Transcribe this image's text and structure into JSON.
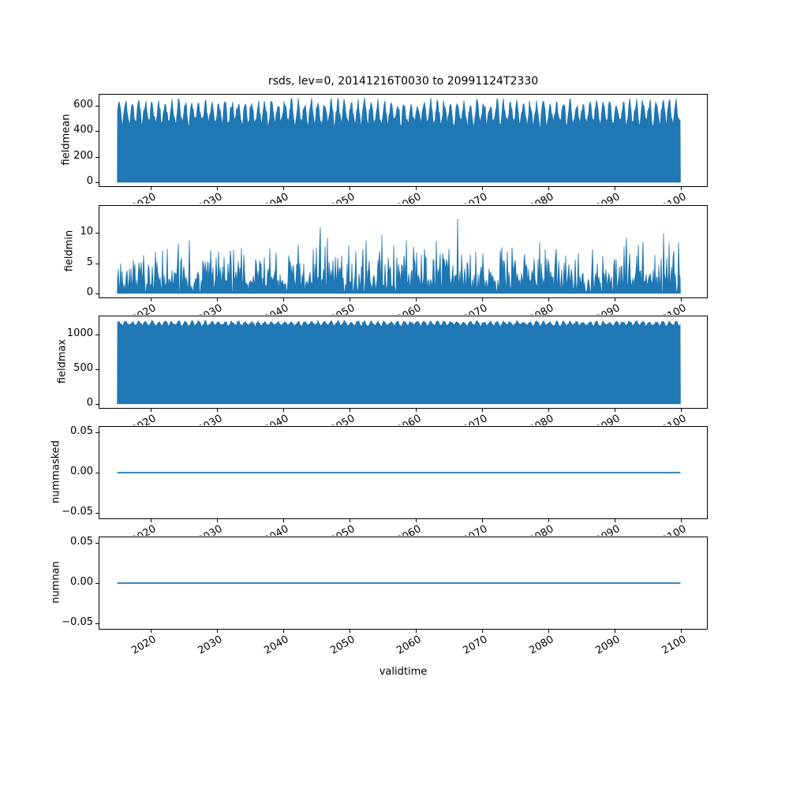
{
  "figure": {
    "title": "rsds, lev=0, 20141216T0030 to 20991124T2330",
    "xlabel": "validtime",
    "background": "#ffffff",
    "accent_color": "#1f77b4",
    "xlim": [
      2012.3,
      2103.9
    ],
    "xticks": [
      2020,
      2030,
      2040,
      2050,
      2060,
      2070,
      2080,
      2090,
      2100
    ],
    "x_data_range": [
      2015.0,
      2099.9
    ]
  },
  "chart_data": [
    {
      "type": "area",
      "ylabel": "fieldmean",
      "ylim": [
        -31,
        688
      ],
      "yticks": [
        0,
        200,
        400,
        600
      ],
      "ytick_labels": [
        "0",
        "200",
        "400",
        "600"
      ],
      "description": "Dense half-hourly series filling from 0; top envelope oscillates annually between about 430 and 680",
      "envelope": {
        "mid": 545,
        "amp": 80,
        "jitter": 80,
        "clamp_min": 425,
        "clamp_max": 672
      },
      "seed": 11
    },
    {
      "type": "spikes",
      "ylabel": "fieldmin",
      "ylim": [
        -0.7,
        14.5
      ],
      "yticks": [
        0,
        5,
        10
      ],
      "ytick_labels": [
        "0",
        "5",
        "10"
      ],
      "description": "Noisy spikes from 0, mostly 2-9, occasional peaks up to about 13.8",
      "spikes": {
        "base": 1.2,
        "scale": 8.5,
        "spike_prob": 0.05,
        "spike_add": 6,
        "max": 13.8,
        "gap_prob": 0.15,
        "gap_level": 0.5
      },
      "seed": 22
    },
    {
      "type": "area",
      "ylabel": "fieldmax",
      "ylim": [
        -60,
        1262
      ],
      "yticks": [
        0,
        500,
        1000
      ],
      "ytick_labels": [
        "0",
        "500",
        "1000"
      ],
      "description": "Dense fill from 0 with nearly flat scalloped top around 1090-1205",
      "envelope": {
        "mid": 1158,
        "amp": 28,
        "jitter": 36,
        "clamp_min": 1090,
        "clamp_max": 1204
      },
      "seed": 33
    },
    {
      "type": "line",
      "ylabel": "nummasked",
      "ylim": [
        -0.057,
        0.057
      ],
      "yticks": [
        -0.05,
        0,
        0.05
      ],
      "ytick_labels": [
        "−0.05",
        "0.00",
        "0.05"
      ],
      "description": "Constant value 0 across the full time range",
      "value": 0
    },
    {
      "type": "line",
      "ylabel": "numnan",
      "ylim": [
        -0.057,
        0.057
      ],
      "yticks": [
        -0.05,
        0,
        0.05
      ],
      "ytick_labels": [
        "−0.05",
        "0.00",
        "0.05"
      ],
      "description": "Constant value 0 across the full time range",
      "value": 0
    }
  ]
}
